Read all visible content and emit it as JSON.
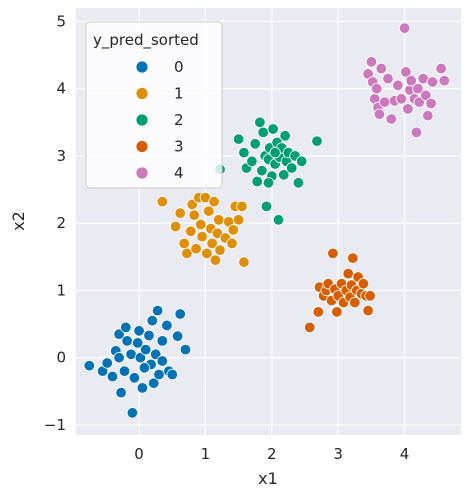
{
  "chart_data": {
    "type": "scatter",
    "xlabel": "x1",
    "ylabel": "x2",
    "xlim": [
      -0.95,
      4.85
    ],
    "ylim": [
      -1.15,
      5.2
    ],
    "xticks": [
      0,
      1,
      2,
      3,
      4
    ],
    "yticks": [
      -1,
      0,
      1,
      2,
      3,
      4,
      5
    ],
    "grid": true,
    "background": "#eaeaf2",
    "legend": {
      "title": "y_pred_sorted",
      "position": "top-left"
    },
    "series": [
      {
        "name": "0",
        "color": "#0173b2",
        "points": [
          [
            -0.75,
            -0.12
          ],
          [
            -0.55,
            -0.2
          ],
          [
            -0.48,
            -0.08
          ],
          [
            -0.4,
            -0.28
          ],
          [
            -0.35,
            0.1
          ],
          [
            -0.3,
            0.35
          ],
          [
            -0.27,
            -0.52
          ],
          [
            -0.22,
            -0.2
          ],
          [
            -0.2,
            0.45
          ],
          [
            -0.18,
            0.25
          ],
          [
            -0.12,
            0.05
          ],
          [
            -0.1,
            -0.82
          ],
          [
            -0.07,
            -0.3
          ],
          [
            -0.02,
            0.22
          ],
          [
            0.02,
            0.0
          ],
          [
            0.05,
            -0.45
          ],
          [
            0.1,
            0.12
          ],
          [
            0.15,
            0.33
          ],
          [
            0.18,
            -0.1
          ],
          [
            0.2,
            0.55
          ],
          [
            0.22,
            -0.38
          ],
          [
            0.25,
            0.05
          ],
          [
            0.28,
            0.7
          ],
          [
            0.3,
            -0.25
          ],
          [
            0.35,
            -0.05
          ],
          [
            0.42,
            0.48
          ],
          [
            0.45,
            -0.2
          ],
          [
            0.5,
            -0.25
          ],
          [
            0.58,
            0.32
          ],
          [
            0.62,
            0.65
          ],
          [
            0.7,
            0.12
          ],
          [
            -0.3,
            0.0
          ],
          [
            0.0,
            0.4
          ],
          [
            0.08,
            -0.15
          ],
          [
            0.35,
            0.25
          ]
        ]
      },
      {
        "name": "1",
        "color": "#de8f05",
        "points": [
          [
            0.35,
            2.32
          ],
          [
            0.55,
            1.95
          ],
          [
            0.62,
            2.15
          ],
          [
            0.68,
            1.7
          ],
          [
            0.72,
            1.55
          ],
          [
            0.78,
            1.88
          ],
          [
            0.8,
            2.28
          ],
          [
            0.83,
            2.12
          ],
          [
            0.86,
            1.62
          ],
          [
            0.9,
            2.38
          ],
          [
            0.93,
            1.98
          ],
          [
            0.95,
            1.8
          ],
          [
            1.0,
            2.38
          ],
          [
            1.02,
            1.55
          ],
          [
            1.05,
            2.18
          ],
          [
            1.08,
            1.92
          ],
          [
            1.1,
            1.7
          ],
          [
            1.13,
            2.32
          ],
          [
            1.15,
            1.45
          ],
          [
            1.18,
            1.85
          ],
          [
            1.2,
            2.05
          ],
          [
            1.22,
            1.6
          ],
          [
            1.3,
            1.78
          ],
          [
            1.35,
            2.02
          ],
          [
            1.4,
            1.7
          ],
          [
            1.42,
            1.9
          ],
          [
            1.45,
            2.25
          ],
          [
            1.5,
            2.05
          ],
          [
            1.58,
            1.42
          ],
          [
            1.55,
            2.25
          ]
        ]
      },
      {
        "name": "2",
        "color": "#029e73",
        "points": [
          [
            1.22,
            2.8
          ],
          [
            1.5,
            3.25
          ],
          [
            1.58,
            3.05
          ],
          [
            1.62,
            2.82
          ],
          [
            1.7,
            2.92
          ],
          [
            1.75,
            3.18
          ],
          [
            1.78,
            2.62
          ],
          [
            1.82,
            3.5
          ],
          [
            1.85,
            2.78
          ],
          [
            1.87,
            3.35
          ],
          [
            1.9,
            3.0
          ],
          [
            1.92,
            2.25
          ],
          [
            1.95,
            2.95
          ],
          [
            1.97,
            3.12
          ],
          [
            2.0,
            2.7
          ],
          [
            2.02,
            3.4
          ],
          [
            2.05,
            2.88
          ],
          [
            2.08,
            3.2
          ],
          [
            2.1,
            2.05
          ],
          [
            2.12,
            2.98
          ],
          [
            2.15,
            3.12
          ],
          [
            2.18,
            2.72
          ],
          [
            2.2,
            3.3
          ],
          [
            2.22,
            2.92
          ],
          [
            2.25,
            3.05
          ],
          [
            2.3,
            2.82
          ],
          [
            2.35,
            3.0
          ],
          [
            2.4,
            2.6
          ],
          [
            2.45,
            2.92
          ],
          [
            2.68,
            3.22
          ],
          [
            1.95,
            2.6
          ],
          [
            2.05,
            3.05
          ]
        ]
      },
      {
        "name": "3",
        "color": "#d55e00",
        "points": [
          [
            2.57,
            0.45
          ],
          [
            2.7,
            0.68
          ],
          [
            2.72,
            1.05
          ],
          [
            2.78,
            0.92
          ],
          [
            2.82,
            1.0
          ],
          [
            2.85,
            1.1
          ],
          [
            2.9,
            0.85
          ],
          [
            2.92,
            1.55
          ],
          [
            2.95,
            1.02
          ],
          [
            2.98,
            0.68
          ],
          [
            3.0,
            0.92
          ],
          [
            3.05,
            1.1
          ],
          [
            3.08,
            0.82
          ],
          [
            3.12,
            1.0
          ],
          [
            3.15,
            1.25
          ],
          [
            3.18,
            0.9
          ],
          [
            3.2,
            1.08
          ],
          [
            3.22,
            1.48
          ],
          [
            3.25,
            0.82
          ],
          [
            3.28,
            1.0
          ],
          [
            3.3,
            1.2
          ],
          [
            3.35,
            0.95
          ],
          [
            3.38,
            1.1
          ],
          [
            3.42,
            0.92
          ],
          [
            3.45,
            0.7
          ],
          [
            3.48,
            0.92
          ]
        ]
      },
      {
        "name": "4",
        "color": "#cc78bc",
        "points": [
          [
            3.45,
            4.22
          ],
          [
            3.5,
            4.4
          ],
          [
            3.52,
            4.1
          ],
          [
            3.55,
            3.85
          ],
          [
            3.58,
            4.0
          ],
          [
            3.6,
            3.72
          ],
          [
            3.62,
            3.62
          ],
          [
            3.65,
            4.3
          ],
          [
            3.7,
            3.8
          ],
          [
            3.75,
            4.15
          ],
          [
            3.8,
            3.55
          ],
          [
            3.85,
            3.82
          ],
          [
            3.9,
            4.05
          ],
          [
            3.95,
            3.85
          ],
          [
            4.0,
            4.9
          ],
          [
            4.02,
            4.25
          ],
          [
            4.05,
            3.7
          ],
          [
            4.08,
            3.98
          ],
          [
            4.1,
            4.12
          ],
          [
            4.15,
            3.85
          ],
          [
            4.18,
            3.35
          ],
          [
            4.2,
            4.0
          ],
          [
            4.22,
            3.8
          ],
          [
            4.28,
            4.15
          ],
          [
            4.32,
            3.9
          ],
          [
            4.35,
            3.6
          ],
          [
            4.4,
            3.78
          ],
          [
            4.42,
            4.1
          ],
          [
            4.55,
            4.3
          ],
          [
            4.6,
            4.12
          ]
        ]
      }
    ]
  }
}
